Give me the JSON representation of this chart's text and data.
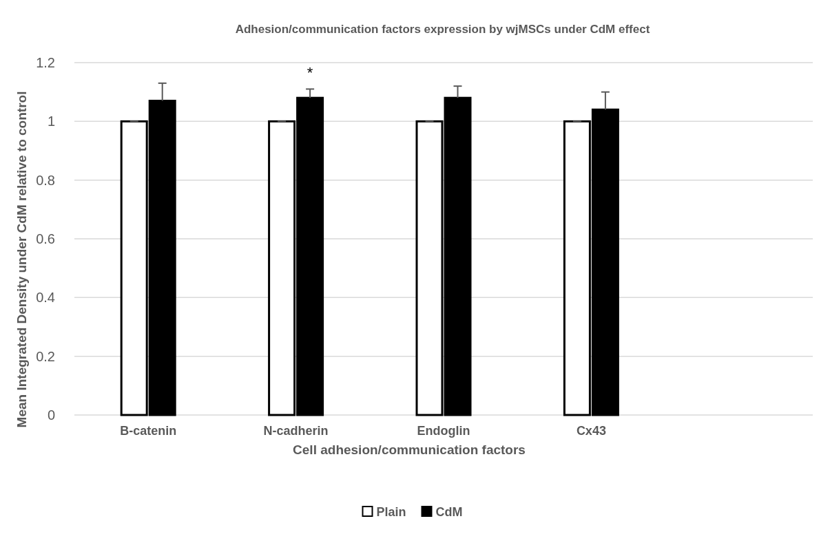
{
  "chart_data": {
    "type": "bar",
    "title": "Adhesion/communication factors expression by wjMSCs under CdM effect",
    "xlabel": "Cell adhesion/communication factors",
    "ylabel": "Mean Integrated Density under CdM relative to control",
    "categories": [
      "B-catenin",
      "N-cadherin",
      "Endoglin",
      "Cx43",
      null
    ],
    "series": [
      {
        "name": "Plain",
        "color": "#ffffff",
        "values": [
          1,
          1,
          1,
          1,
          null
        ],
        "errors": [
          0,
          0,
          0,
          0,
          null
        ]
      },
      {
        "name": "CdM",
        "color": "#000000",
        "values": [
          1.07,
          1.08,
          1.08,
          1.04,
          null
        ],
        "errors": [
          0.06,
          0.03,
          0.04,
          0.06,
          null
        ]
      }
    ],
    "ylim": [
      0,
      1.2
    ],
    "yticks": [
      0,
      0.2,
      0.4,
      0.6,
      0.8,
      1,
      1.2
    ],
    "grid": "y",
    "legend": "bottom",
    "annotations": [
      "*"
    ]
  }
}
